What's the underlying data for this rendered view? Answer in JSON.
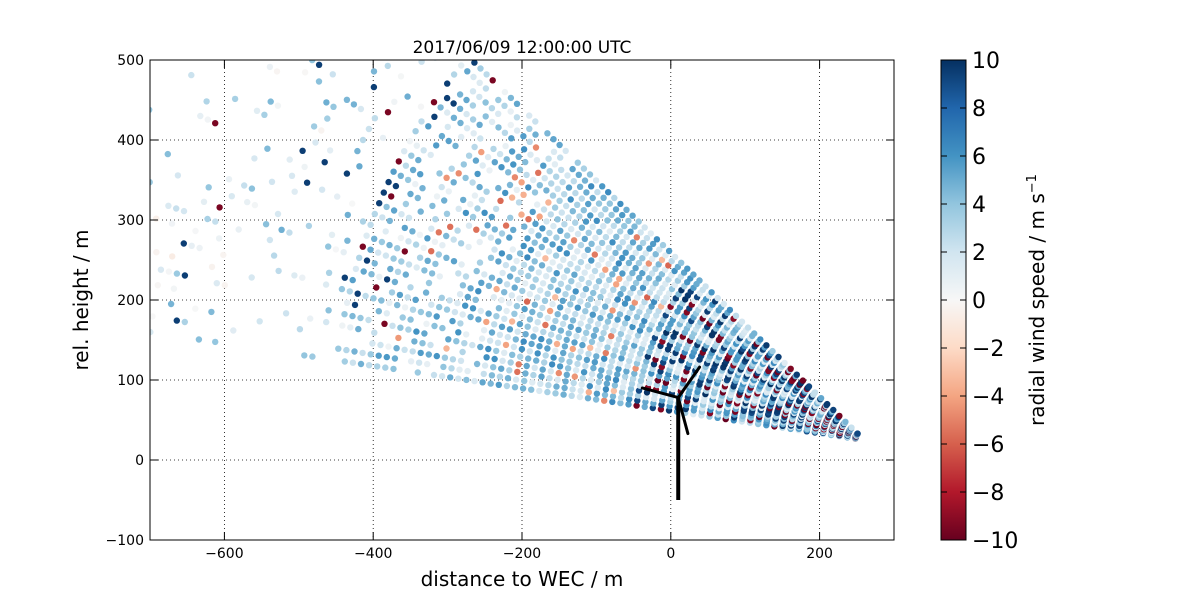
{
  "chart_data": {
    "type": "scatter",
    "title": "2017/06/09 12:00:00 UTC",
    "xlabel": "distance to WEC / m",
    "ylabel": "rel. height / m",
    "xlim": [
      -700,
      300
    ],
    "ylim": [
      -100,
      500
    ],
    "x_ticks": [
      -600,
      -400,
      -200,
      0,
      200
    ],
    "y_ticks": [
      -100,
      0,
      100,
      200,
      300,
      400,
      500
    ],
    "x_tick_labels": [
      "−600",
      "−400",
      "−200",
      "0",
      "200"
    ],
    "y_tick_labels": [
      "−100",
      "0",
      "100",
      "200",
      "300",
      "400",
      "500"
    ],
    "grid": true,
    "colorbar": {
      "label": "radial wind speed / m s",
      "label_superscript": "−1",
      "range": [
        -10,
        10
      ],
      "ticks": [
        -10,
        -8,
        -6,
        -4,
        -2,
        0,
        2,
        4,
        6,
        8,
        10
      ],
      "tick_labels": [
        "−10",
        "−8",
        "−6",
        "−4",
        "−2",
        "0",
        "2",
        "4",
        "6",
        "8",
        "10"
      ],
      "colormap": [
        "#67001f",
        "#b2182b",
        "#d6604d",
        "#f4a582",
        "#fddbc7",
        "#f7f7f7",
        "#d1e5f0",
        "#92c5de",
        "#4393c3",
        "#2166ac",
        "#053061"
      ]
    },
    "scan": {
      "origin": [
        260,
        25
      ],
      "azimuth_min_deg": 8,
      "azimuth_max_deg": 42,
      "beam_count": 30,
      "range_gate_m": 11,
      "x_min": -700,
      "y_max": 500
    },
    "turbine": {
      "hub": [
        10,
        78
      ],
      "tower_base": [
        10,
        -50
      ],
      "blade_length_m": 50,
      "blade_angles_deg": [
        55,
        165,
        285
      ]
    }
  }
}
